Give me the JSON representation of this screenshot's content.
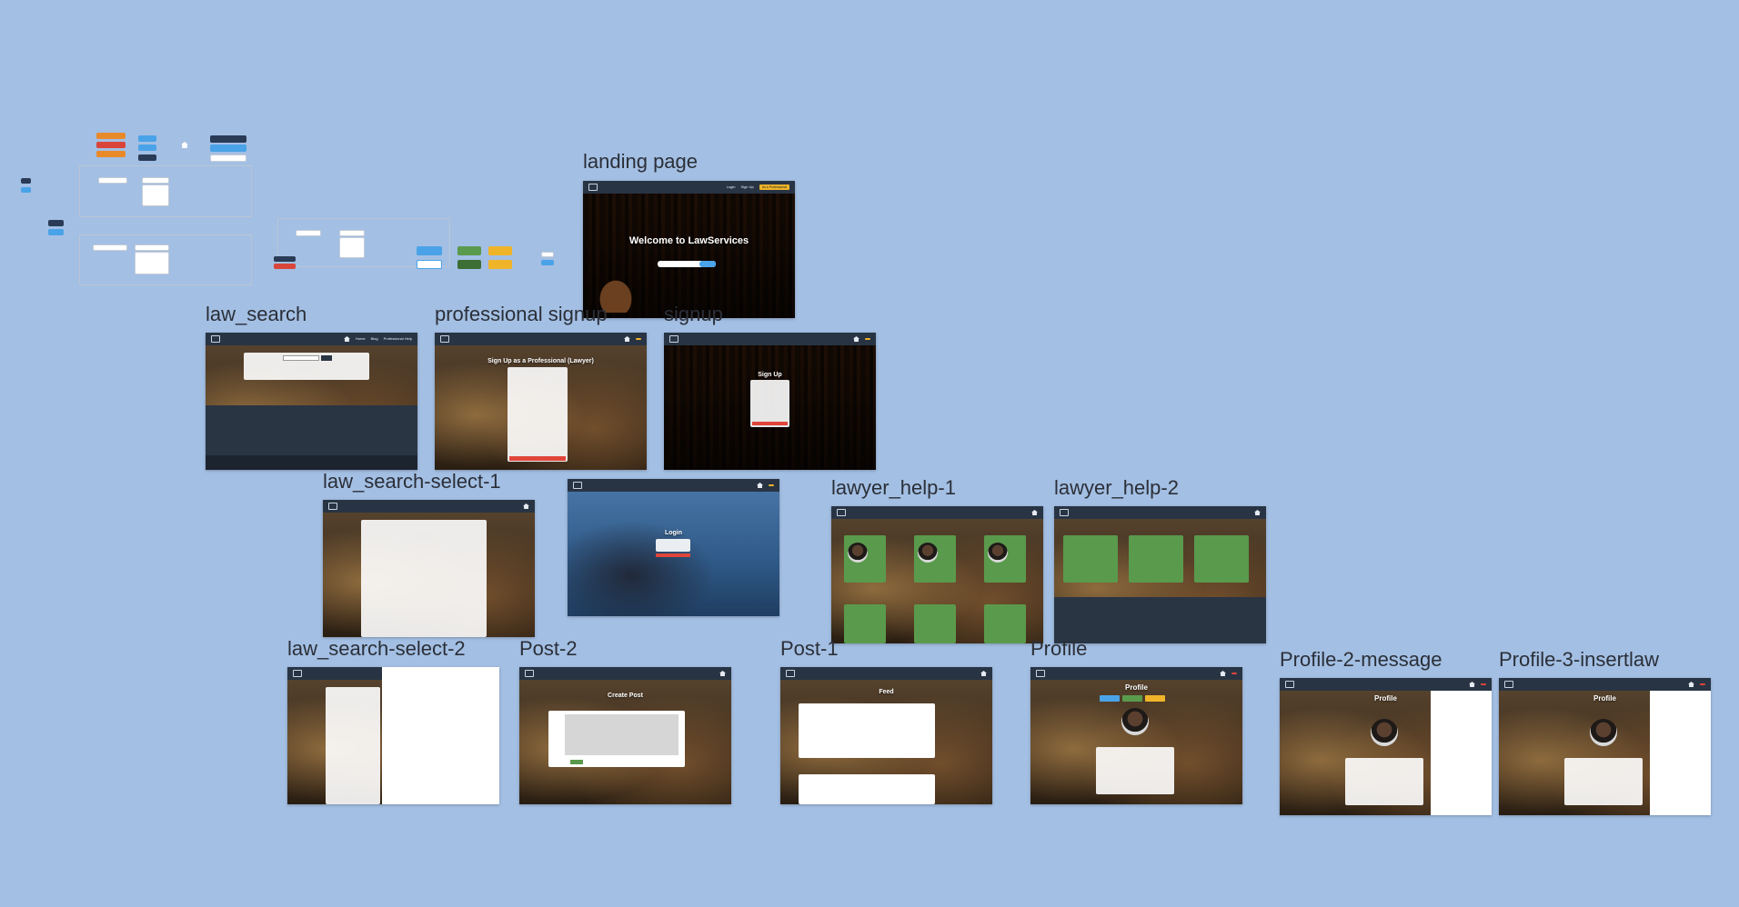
{
  "canvas": {
    "background": "#a3bfe3"
  },
  "frames": {
    "landing": {
      "label": "landing page",
      "nav": [
        "Login",
        "Sign Up",
        "As a Professional"
      ],
      "hero": "Welcome to LawServices"
    },
    "law_search": {
      "label": "law_search",
      "nav": [
        "Home",
        "Blog",
        "Professional Help"
      ]
    },
    "professional_signup": {
      "label": "professional signup",
      "hero": "Sign Up as a Professional (Lawyer)"
    },
    "signup": {
      "label": "signup",
      "hero": "Sign Up"
    },
    "law_search_select_1": {
      "label": "law_search-select-1"
    },
    "login": {
      "hero": "Login"
    },
    "lawyer_help_1": {
      "label": "lawyer_help-1"
    },
    "lawyer_help_2": {
      "label": "lawyer_help-2"
    },
    "law_search_select_2": {
      "label": "law_search-select-2"
    },
    "post_2": {
      "label": "Post-2",
      "hero": "Create Post"
    },
    "post_1": {
      "label": "Post-1",
      "hero": "Feed"
    },
    "profile": {
      "label": "Profile",
      "hero": "Profile"
    },
    "profile_2_message": {
      "label": "Profile-2-message",
      "hero": "Profile"
    },
    "profile_3_insertlaw": {
      "label": "Profile-3-insertlaw",
      "hero": "Profile"
    }
  }
}
